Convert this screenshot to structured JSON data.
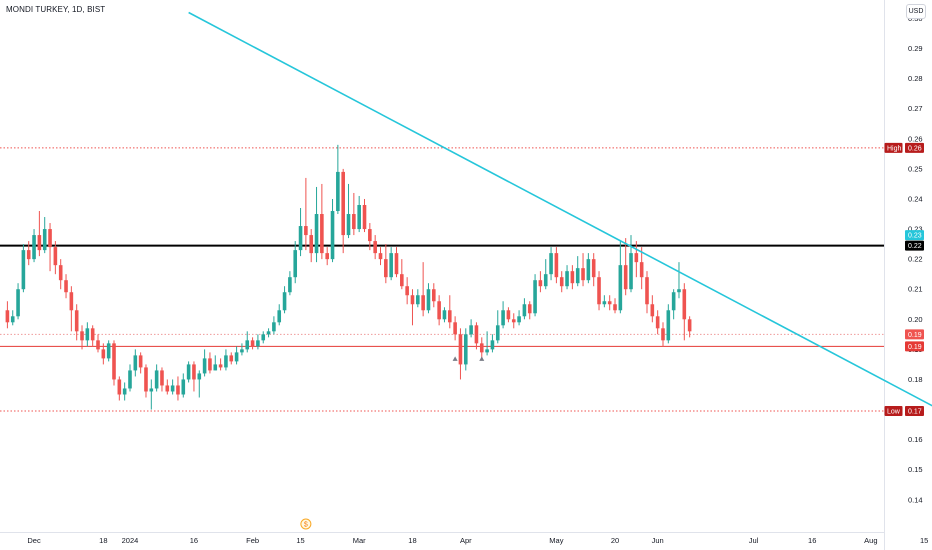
{
  "header": {
    "title": "MONDI TURKEY, 1D, BIST",
    "currency": "USD"
  },
  "colors": {
    "up": "#26a69a",
    "down": "#ef5350",
    "trendline": "#26c6da",
    "support": "#e53935",
    "resistance": "#000000",
    "high_low_tag": "#b71c1c",
    "last_tag": "#ef5350",
    "cyan_tag": "#26c6da"
  },
  "chart_data": {
    "type": "candlestick",
    "title": "MONDI TURKEY, 1D, BIST",
    "ylim": [
      0.135,
      0.302
    ],
    "y_ticks": [
      {
        "value": 0.3,
        "label": "0.30"
      },
      {
        "value": 0.29,
        "label": "0.29"
      },
      {
        "value": 0.28,
        "label": "0.28"
      },
      {
        "value": 0.27,
        "label": "0.27"
      },
      {
        "value": 0.26,
        "label": "0.26"
      },
      {
        "value": 0.25,
        "label": "0.25"
      },
      {
        "value": 0.24,
        "label": "0.24"
      },
      {
        "value": 0.23,
        "label": "0.23"
      },
      {
        "value": 0.22,
        "label": "0.22"
      },
      {
        "value": 0.21,
        "label": "0.21"
      },
      {
        "value": 0.2,
        "label": "0.20"
      },
      {
        "value": 0.19,
        "label": "0.19"
      },
      {
        "value": 0.18,
        "label": "0.18"
      },
      {
        "value": 0.17,
        "label": "0.17"
      },
      {
        "value": 0.16,
        "label": "0.16"
      },
      {
        "value": 0.15,
        "label": "0.15"
      },
      {
        "value": 0.14,
        "label": "0.14"
      }
    ],
    "x_ticks": [
      {
        "bar": 5,
        "label": "Dec"
      },
      {
        "bar": 18,
        "label": "18"
      },
      {
        "bar": 23,
        "label": "2024"
      },
      {
        "bar": 35,
        "label": "16"
      },
      {
        "bar": 46,
        "label": "Feb"
      },
      {
        "bar": 55,
        "label": "15"
      },
      {
        "bar": 66,
        "label": "Mar"
      },
      {
        "bar": 76,
        "label": "18"
      },
      {
        "bar": 86,
        "label": "Apr"
      },
      {
        "bar": 103,
        "label": "May"
      },
      {
        "bar": 114,
        "label": "20"
      },
      {
        "bar": 122,
        "label": "Jun"
      },
      {
        "bar": 140,
        "label": "Jul"
      },
      {
        "bar": 151,
        "label": "16"
      },
      {
        "bar": 162,
        "label": "Aug"
      },
      {
        "bar": 172,
        "label": "15"
      }
    ],
    "candles": [
      [
        0.203,
        0.199,
        0.206,
        0.197
      ],
      [
        0.199,
        0.201,
        0.203,
        0.198
      ],
      [
        0.201,
        0.21,
        0.212,
        0.2
      ],
      [
        0.21,
        0.223,
        0.225,
        0.209
      ],
      [
        0.223,
        0.22,
        0.226,
        0.218
      ],
      [
        0.22,
        0.228,
        0.23,
        0.219
      ],
      [
        0.228,
        0.223,
        0.236,
        0.221
      ],
      [
        0.223,
        0.23,
        0.234,
        0.222
      ],
      [
        0.23,
        0.224,
        0.232,
        0.216
      ],
      [
        0.224,
        0.218,
        0.226,
        0.215
      ],
      [
        0.218,
        0.213,
        0.22,
        0.21
      ],
      [
        0.213,
        0.209,
        0.215,
        0.207
      ],
      [
        0.209,
        0.203,
        0.211,
        0.196
      ],
      [
        0.203,
        0.196,
        0.205,
        0.193
      ],
      [
        0.196,
        0.193,
        0.198,
        0.19
      ],
      [
        0.193,
        0.197,
        0.199,
        0.191
      ],
      [
        0.197,
        0.193,
        0.198,
        0.191
      ],
      [
        0.193,
        0.19,
        0.195,
        0.189
      ],
      [
        0.19,
        0.187,
        0.192,
        0.185
      ],
      [
        0.187,
        0.192,
        0.193,
        0.186
      ],
      [
        0.192,
        0.18,
        0.193,
        0.178
      ],
      [
        0.18,
        0.175,
        0.181,
        0.173
      ],
      [
        0.175,
        0.177,
        0.179,
        0.173
      ],
      [
        0.177,
        0.183,
        0.185,
        0.176
      ],
      [
        0.183,
        0.188,
        0.19,
        0.181
      ],
      [
        0.188,
        0.184,
        0.189,
        0.182
      ],
      [
        0.184,
        0.176,
        0.185,
        0.174
      ],
      [
        0.176,
        0.177,
        0.18,
        0.17
      ],
      [
        0.177,
        0.183,
        0.185,
        0.176
      ],
      [
        0.183,
        0.178,
        0.184,
        0.176
      ],
      [
        0.178,
        0.176,
        0.18,
        0.175
      ],
      [
        0.176,
        0.178,
        0.18,
        0.175
      ],
      [
        0.178,
        0.175,
        0.181,
        0.173
      ],
      [
        0.175,
        0.18,
        0.182,
        0.174
      ],
      [
        0.18,
        0.185,
        0.186,
        0.179
      ],
      [
        0.185,
        0.18,
        0.186,
        0.176
      ],
      [
        0.18,
        0.182,
        0.183,
        0.174
      ],
      [
        0.182,
        0.187,
        0.19,
        0.181
      ],
      [
        0.187,
        0.183,
        0.189,
        0.182
      ],
      [
        0.183,
        0.185,
        0.188,
        0.183
      ],
      [
        0.185,
        0.184,
        0.187,
        0.183
      ],
      [
        0.184,
        0.188,
        0.19,
        0.183
      ],
      [
        0.188,
        0.186,
        0.189,
        0.185
      ],
      [
        0.186,
        0.189,
        0.191,
        0.185
      ],
      [
        0.189,
        0.19,
        0.192,
        0.188
      ],
      [
        0.19,
        0.193,
        0.196,
        0.189
      ],
      [
        0.193,
        0.191,
        0.194,
        0.19
      ],
      [
        0.191,
        0.193,
        0.195,
        0.19
      ],
      [
        0.193,
        0.195,
        0.196,
        0.192
      ],
      [
        0.195,
        0.196,
        0.197,
        0.194
      ],
      [
        0.196,
        0.199,
        0.201,
        0.195
      ],
      [
        0.199,
        0.203,
        0.205,
        0.198
      ],
      [
        0.203,
        0.209,
        0.211,
        0.202
      ],
      [
        0.209,
        0.214,
        0.216,
        0.208
      ],
      [
        0.214,
        0.223,
        0.226,
        0.212
      ],
      [
        0.223,
        0.231,
        0.237,
        0.221
      ],
      [
        0.231,
        0.228,
        0.247,
        0.223
      ],
      [
        0.228,
        0.222,
        0.23,
        0.219
      ],
      [
        0.222,
        0.235,
        0.244,
        0.219
      ],
      [
        0.235,
        0.222,
        0.245,
        0.22
      ],
      [
        0.222,
        0.22,
        0.224,
        0.218
      ],
      [
        0.22,
        0.236,
        0.24,
        0.219
      ],
      [
        0.236,
        0.249,
        0.258,
        0.235
      ],
      [
        0.249,
        0.228,
        0.25,
        0.222
      ],
      [
        0.228,
        0.235,
        0.245,
        0.227
      ],
      [
        0.235,
        0.23,
        0.242,
        0.228
      ],
      [
        0.23,
        0.238,
        0.241,
        0.229
      ],
      [
        0.238,
        0.23,
        0.24,
        0.229
      ],
      [
        0.23,
        0.226,
        0.232,
        0.223
      ],
      [
        0.226,
        0.222,
        0.228,
        0.22
      ],
      [
        0.222,
        0.22,
        0.224,
        0.218
      ],
      [
        0.22,
        0.214,
        0.225,
        0.212
      ],
      [
        0.214,
        0.222,
        0.224,
        0.213
      ],
      [
        0.222,
        0.215,
        0.224,
        0.214
      ],
      [
        0.215,
        0.211,
        0.22,
        0.21
      ],
      [
        0.211,
        0.208,
        0.214,
        0.205
      ],
      [
        0.208,
        0.205,
        0.21,
        0.198
      ],
      [
        0.205,
        0.208,
        0.21,
        0.204
      ],
      [
        0.208,
        0.203,
        0.219,
        0.201
      ],
      [
        0.203,
        0.21,
        0.212,
        0.202
      ],
      [
        0.21,
        0.206,
        0.212,
        0.204
      ],
      [
        0.206,
        0.2,
        0.208,
        0.198
      ],
      [
        0.2,
        0.203,
        0.204,
        0.199
      ],
      [
        0.203,
        0.199,
        0.208,
        0.197
      ],
      [
        0.199,
        0.195,
        0.201,
        0.193
      ],
      [
        0.195,
        0.185,
        0.197,
        0.18
      ],
      [
        0.185,
        0.195,
        0.197,
        0.183
      ],
      [
        0.195,
        0.198,
        0.2,
        0.194
      ],
      [
        0.198,
        0.192,
        0.199,
        0.19
      ],
      [
        0.192,
        0.189,
        0.194,
        0.187
      ],
      [
        0.189,
        0.19,
        0.196,
        0.188
      ],
      [
        0.19,
        0.193,
        0.195,
        0.189
      ],
      [
        0.193,
        0.198,
        0.203,
        0.192
      ],
      [
        0.198,
        0.203,
        0.206,
        0.197
      ],
      [
        0.203,
        0.2,
        0.204,
        0.199
      ],
      [
        0.2,
        0.199,
        0.202,
        0.197
      ],
      [
        0.199,
        0.201,
        0.203,
        0.198
      ],
      [
        0.201,
        0.205,
        0.207,
        0.2
      ],
      [
        0.205,
        0.202,
        0.206,
        0.2
      ],
      [
        0.202,
        0.213,
        0.215,
        0.201
      ],
      [
        0.213,
        0.211,
        0.216,
        0.209
      ],
      [
        0.211,
        0.215,
        0.22,
        0.21
      ],
      [
        0.215,
        0.222,
        0.224,
        0.213
      ],
      [
        0.222,
        0.214,
        0.224,
        0.212
      ],
      [
        0.214,
        0.211,
        0.216,
        0.209
      ],
      [
        0.211,
        0.216,
        0.218,
        0.21
      ],
      [
        0.216,
        0.212,
        0.218,
        0.21
      ],
      [
        0.212,
        0.217,
        0.221,
        0.211
      ],
      [
        0.217,
        0.213,
        0.222,
        0.211
      ],
      [
        0.213,
        0.22,
        0.222,
        0.212
      ],
      [
        0.22,
        0.214,
        0.222,
        0.211
      ],
      [
        0.214,
        0.205,
        0.216,
        0.203
      ],
      [
        0.205,
        0.206,
        0.208,
        0.204
      ],
      [
        0.206,
        0.205,
        0.208,
        0.203
      ],
      [
        0.205,
        0.203,
        0.207,
        0.202
      ],
      [
        0.203,
        0.218,
        0.226,
        0.202
      ],
      [
        0.218,
        0.21,
        0.227,
        0.208
      ],
      [
        0.21,
        0.222,
        0.228,
        0.209
      ],
      [
        0.222,
        0.219,
        0.226,
        0.214
      ],
      [
        0.219,
        0.214,
        0.224,
        0.21
      ],
      [
        0.214,
        0.205,
        0.216,
        0.202
      ],
      [
        0.205,
        0.201,
        0.208,
        0.199
      ],
      [
        0.201,
        0.197,
        0.203,
        0.195
      ],
      [
        0.197,
        0.193,
        0.199,
        0.191
      ],
      [
        0.193,
        0.203,
        0.205,
        0.192
      ],
      [
        0.203,
        0.209,
        0.21,
        0.2
      ],
      [
        0.209,
        0.21,
        0.219,
        0.207
      ],
      [
        0.21,
        0.2,
        0.212,
        0.193
      ],
      [
        0.2,
        0.196,
        0.201,
        0.194
      ]
    ],
    "horizontal_lines": [
      {
        "name": "High",
        "value": 0.257,
        "label": "0.26",
        "style": "dotted"
      },
      {
        "name": "resistance",
        "value": 0.2245,
        "label": "0.22",
        "style": "solid"
      },
      {
        "name": "support",
        "value": 0.191,
        "label": "0.19",
        "style": "solid"
      },
      {
        "name": "last",
        "value": 0.195,
        "label": "0.19",
        "style": "dotted"
      },
      {
        "name": "Low",
        "value": 0.1695,
        "label": "0.17",
        "style": "dotted"
      }
    ],
    "price_tags": [
      {
        "kind": "high",
        "text": "High",
        "value": 0.257,
        "label": "0.26"
      },
      {
        "kind": "cyan",
        "value": 0.228,
        "label": "0.23"
      },
      {
        "kind": "resistance",
        "value": 0.2245,
        "label": "0.22"
      },
      {
        "kind": "last",
        "value": 0.195,
        "label": "0.19"
      },
      {
        "kind": "support",
        "value": 0.191,
        "label": "0.19"
      },
      {
        "kind": "low",
        "text": "Low",
        "value": 0.1695,
        "label": "0.17"
      }
    ],
    "trendline": {
      "start": {
        "bar": 34,
        "value": 0.302
      },
      "end": {
        "bar": 185,
        "value": 0.1605
      }
    },
    "event_marker": {
      "bar": 56,
      "label": "$"
    },
    "markers": [
      {
        "bar": 84,
        "value": 0.187
      },
      {
        "bar": 89,
        "value": 0.187
      }
    ]
  }
}
